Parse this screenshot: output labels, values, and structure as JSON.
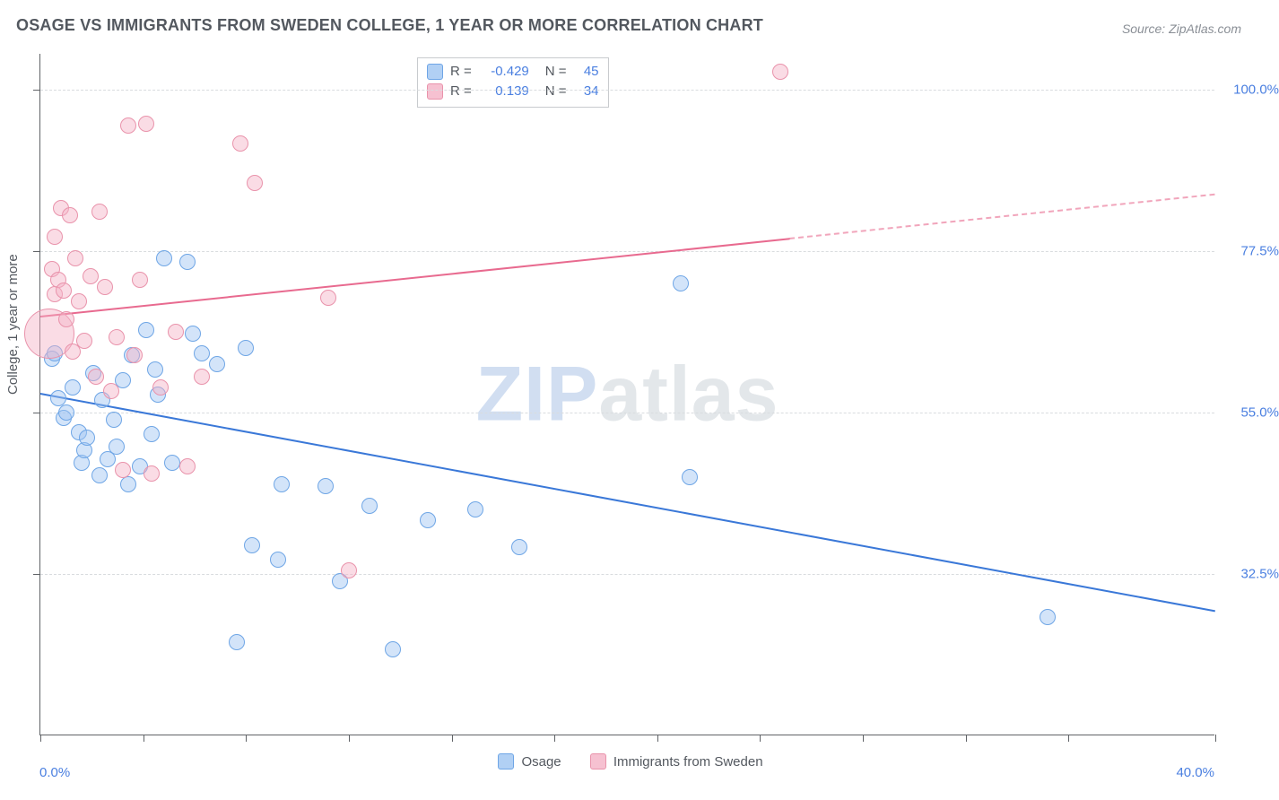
{
  "chart": {
    "type": "scatter",
    "title": "OSAGE VS IMMIGRANTS FROM SWEDEN COLLEGE, 1 YEAR OR MORE CORRELATION CHART",
    "source_label": "Source:",
    "source_name": "ZipAtlas.com",
    "y_axis_title": "College, 1 year or more",
    "watermark_a": "ZIP",
    "watermark_b": "atlas",
    "background_color": "#ffffff",
    "grid_color": "#d9dcdf",
    "axis_color": "#606367",
    "label_color": "#4a7fe0",
    "title_fontsize": 18,
    "label_fontsize": 15,
    "xlim": [
      0,
      40
    ],
    "ylim": [
      10,
      105
    ],
    "x_tick_positions": [
      0,
      3.5,
      7,
      10.5,
      14,
      17.5,
      21,
      24.5,
      28,
      31.5,
      35,
      40
    ],
    "x_end_labels": {
      "min": "0.0%",
      "max": "40.0%"
    },
    "y_gridlines": [
      {
        "value": 100.0,
        "label": "100.0%"
      },
      {
        "value": 77.5,
        "label": "77.5%"
      },
      {
        "value": 55.0,
        "label": "55.0%"
      },
      {
        "value": 32.5,
        "label": "32.5%"
      }
    ],
    "point_radius": 9,
    "series": [
      {
        "name": "Osage",
        "color_fill": "rgba(157,196,241,0.45)",
        "color_stroke": "#6fa6e6",
        "trend_color": "#3a78d8",
        "r": "-0.429",
        "n": "45",
        "trend": {
          "x1": 0,
          "y1": 57.8,
          "x2": 40,
          "y2": 27.5,
          "solid_until_x": 40
        },
        "points": [
          [
            0.4,
            62.5
          ],
          [
            0.5,
            63.2
          ],
          [
            0.6,
            57.0
          ],
          [
            0.8,
            54.2
          ],
          [
            0.9,
            55.0
          ],
          [
            1.1,
            58.5
          ],
          [
            1.3,
            52.2
          ],
          [
            1.4,
            48.0
          ],
          [
            1.5,
            49.8
          ],
          [
            1.6,
            51.5
          ],
          [
            1.8,
            60.5
          ],
          [
            2.0,
            46.3
          ],
          [
            2.1,
            56.8
          ],
          [
            2.3,
            48.5
          ],
          [
            2.5,
            54.0
          ],
          [
            2.6,
            50.2
          ],
          [
            2.8,
            59.5
          ],
          [
            3.0,
            45.0
          ],
          [
            3.1,
            63.0
          ],
          [
            3.4,
            47.5
          ],
          [
            3.6,
            66.5
          ],
          [
            3.8,
            52.0
          ],
          [
            4.0,
            57.5
          ],
          [
            4.2,
            76.5
          ],
          [
            4.5,
            48.0
          ],
          [
            5.0,
            76.0
          ],
          [
            5.2,
            66.0
          ],
          [
            5.5,
            63.2
          ],
          [
            6.0,
            61.8
          ],
          [
            6.7,
            23.0
          ],
          [
            7.0,
            64.0
          ],
          [
            7.2,
            36.5
          ],
          [
            8.1,
            34.5
          ],
          [
            8.2,
            45.0
          ],
          [
            9.7,
            44.8
          ],
          [
            10.2,
            31.5
          ],
          [
            11.2,
            42.0
          ],
          [
            12.0,
            22.0
          ],
          [
            13.2,
            40.0
          ],
          [
            14.8,
            41.5
          ],
          [
            16.3,
            36.2
          ],
          [
            21.8,
            73.0
          ],
          [
            22.1,
            46.0
          ],
          [
            34.3,
            26.5
          ],
          [
            3.9,
            61.0
          ]
        ]
      },
      {
        "name": "Immigrants from Sweden",
        "color_fill": "rgba(244,178,197,0.45)",
        "color_stroke": "#e993ab",
        "trend_color": "#e86a8f",
        "r": "0.139",
        "n": "34",
        "trend": {
          "x1": 0,
          "y1": 68.5,
          "x2": 40,
          "y2": 85.5,
          "solid_until_x": 25.5
        },
        "points": [
          [
            0.3,
            66.0,
            28
          ],
          [
            0.4,
            75.0
          ],
          [
            0.5,
            71.5
          ],
          [
            0.5,
            79.5
          ],
          [
            0.6,
            73.5
          ],
          [
            0.7,
            83.5
          ],
          [
            0.8,
            72.0
          ],
          [
            0.9,
            68.0
          ],
          [
            1.0,
            82.5
          ],
          [
            1.1,
            63.5
          ],
          [
            1.2,
            76.5
          ],
          [
            1.3,
            70.5
          ],
          [
            1.5,
            65.0
          ],
          [
            1.7,
            74.0
          ],
          [
            1.9,
            60.0
          ],
          [
            2.0,
            83.0
          ],
          [
            2.2,
            72.5
          ],
          [
            2.4,
            58.0
          ],
          [
            2.6,
            65.5
          ],
          [
            2.8,
            47.0
          ],
          [
            3.0,
            95.0
          ],
          [
            3.2,
            63.0
          ],
          [
            3.4,
            73.5
          ],
          [
            3.6,
            95.2
          ],
          [
            3.8,
            46.5
          ],
          [
            4.1,
            58.5
          ],
          [
            4.6,
            66.2
          ],
          [
            5.0,
            47.5
          ],
          [
            5.5,
            60.0
          ],
          [
            6.8,
            92.5
          ],
          [
            7.3,
            87.0
          ],
          [
            9.8,
            71.0
          ],
          [
            10.5,
            33.0
          ],
          [
            25.2,
            102.5
          ]
        ]
      }
    ],
    "bottom_legend": [
      {
        "swatch": "blue",
        "label": "Osage"
      },
      {
        "swatch": "pink",
        "label": "Immigrants from Sweden"
      }
    ]
  }
}
